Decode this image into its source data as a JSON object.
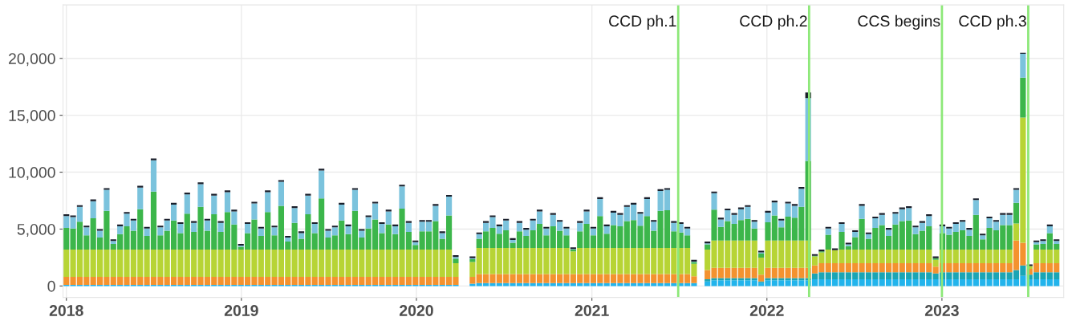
{
  "chart_data": {
    "type": "bar",
    "stacked": true,
    "x": [
      "2018-01-01",
      "2018-01-15",
      "2018-01-29",
      "2018-02-12",
      "2018-02-26",
      "2018-03-12",
      "2018-03-26",
      "2018-04-09",
      "2018-04-23",
      "2018-05-07",
      "2018-05-21",
      "2018-06-04",
      "2018-06-18",
      "2018-07-02",
      "2018-07-16",
      "2018-07-30",
      "2018-08-13",
      "2018-08-27",
      "2018-09-10",
      "2018-09-24",
      "2018-10-08",
      "2018-10-22",
      "2018-11-05",
      "2018-11-19",
      "2018-12-03",
      "2018-12-17",
      "2018-12-31",
      "2019-01-14",
      "2019-01-28",
      "2019-02-11",
      "2019-02-25",
      "2019-03-11",
      "2019-03-25",
      "2019-04-08",
      "2019-04-22",
      "2019-05-06",
      "2019-05-20",
      "2019-06-03",
      "2019-06-17",
      "2019-07-01",
      "2019-07-15",
      "2019-07-29",
      "2019-08-12",
      "2019-08-26",
      "2019-09-09",
      "2019-09-23",
      "2019-10-07",
      "2019-10-21",
      "2019-11-04",
      "2019-11-18",
      "2019-12-02",
      "2019-12-16",
      "2019-12-30",
      "2020-01-13",
      "2020-01-27",
      "2020-02-10",
      "2020-02-24",
      "2020-03-09",
      "2020-03-23",
      "2020-04-27",
      "2020-05-11",
      "2020-05-25",
      "2020-06-08",
      "2020-06-22",
      "2020-07-06",
      "2020-07-20",
      "2020-08-03",
      "2020-08-17",
      "2020-08-31",
      "2020-09-14",
      "2020-09-28",
      "2020-10-12",
      "2020-10-26",
      "2020-11-09",
      "2020-11-23",
      "2020-12-07",
      "2020-12-21",
      "2021-01-04",
      "2021-01-18",
      "2021-02-01",
      "2021-02-15",
      "2021-03-01",
      "2021-03-15",
      "2021-03-29",
      "2021-04-12",
      "2021-04-26",
      "2021-05-10",
      "2021-05-24",
      "2021-06-07",
      "2021-06-21",
      "2021-07-05",
      "2021-07-19",
      "2021-08-02",
      "2021-08-30",
      "2021-09-13",
      "2021-09-27",
      "2021-10-11",
      "2021-10-25",
      "2021-11-08",
      "2021-11-22",
      "2021-12-06",
      "2021-12-20",
      "2022-01-03",
      "2022-01-17",
      "2022-01-31",
      "2022-02-14",
      "2022-02-28",
      "2022-03-14",
      "2022-03-28",
      "2022-04-11",
      "2022-04-25",
      "2022-05-09",
      "2022-05-23",
      "2022-06-06",
      "2022-06-20",
      "2022-07-04",
      "2022-07-18",
      "2022-08-01",
      "2022-08-15",
      "2022-08-29",
      "2022-09-12",
      "2022-09-26",
      "2022-10-10",
      "2022-10-24",
      "2022-11-07",
      "2022-11-21",
      "2022-12-05",
      "2022-12-19",
      "2023-01-02",
      "2023-01-16",
      "2023-01-30",
      "2023-02-13",
      "2023-02-27",
      "2023-03-13",
      "2023-03-27",
      "2023-04-10",
      "2023-04-24",
      "2023-05-08",
      "2023-05-22",
      "2023-06-05",
      "2023-06-19",
      "2023-07-03",
      "2023-07-17",
      "2023-07-31",
      "2023-08-14",
      "2023-08-28"
    ],
    "series": [
      {
        "color": "#22b4ec",
        "values": [
          100,
          100,
          100,
          100,
          100,
          100,
          100,
          100,
          100,
          100,
          100,
          100,
          100,
          100,
          100,
          100,
          100,
          100,
          100,
          100,
          100,
          100,
          100,
          100,
          100,
          100,
          100,
          100,
          100,
          100,
          100,
          100,
          100,
          100,
          100,
          100,
          100,
          100,
          100,
          100,
          100,
          100,
          100,
          100,
          100,
          100,
          100,
          100,
          100,
          100,
          100,
          100,
          100,
          100,
          100,
          100,
          100,
          100,
          100,
          200,
          250,
          250,
          250,
          250,
          250,
          250,
          250,
          250,
          250,
          250,
          250,
          250,
          250,
          250,
          250,
          250,
          250,
          250,
          250,
          250,
          250,
          250,
          250,
          250,
          250,
          250,
          250,
          250,
          250,
          250,
          250,
          250,
          250,
          400,
          500,
          500,
          500,
          500,
          500,
          500,
          500,
          300,
          500,
          500,
          500,
          500,
          500,
          500,
          500,
          600,
          600,
          600,
          600,
          600,
          600,
          600,
          600,
          600,
          600,
          600,
          600,
          600,
          600,
          600,
          600,
          600,
          600,
          600,
          600,
          600,
          600,
          600,
          600,
          600,
          600,
          600,
          600,
          600,
          600,
          600,
          900,
          600,
          600,
          600,
          600,
          600
        ]
      },
      {
        "color": "#1aa5b5",
        "values": [
          0,
          0,
          0,
          0,
          0,
          0,
          0,
          0,
          0,
          0,
          0,
          0,
          0,
          0,
          0,
          0,
          0,
          0,
          0,
          0,
          0,
          0,
          0,
          0,
          0,
          0,
          0,
          0,
          0,
          0,
          0,
          0,
          0,
          0,
          0,
          0,
          0,
          0,
          0,
          0,
          0,
          0,
          0,
          0,
          0,
          0,
          0,
          0,
          0,
          0,
          0,
          0,
          0,
          0,
          0,
          0,
          0,
          0,
          0,
          0,
          0,
          0,
          0,
          0,
          0,
          0,
          0,
          0,
          0,
          0,
          0,
          0,
          0,
          0,
          0,
          0,
          0,
          0,
          0,
          0,
          0,
          0,
          0,
          0,
          0,
          0,
          0,
          0,
          0,
          0,
          0,
          0,
          0,
          200,
          200,
          200,
          200,
          200,
          200,
          200,
          200,
          100,
          200,
          200,
          200,
          200,
          200,
          200,
          200,
          500,
          600,
          600,
          600,
          600,
          600,
          600,
          600,
          600,
          600,
          600,
          600,
          600,
          600,
          600,
          600,
          600,
          600,
          500,
          600,
          600,
          600,
          600,
          600,
          600,
          600,
          600,
          600,
          600,
          600,
          800,
          900,
          400,
          600,
          600,
          600,
          600
        ]
      },
      {
        "color": "#f4922f",
        "values": [
          700,
          700,
          700,
          700,
          700,
          700,
          700,
          700,
          700,
          700,
          700,
          700,
          700,
          700,
          700,
          700,
          700,
          700,
          700,
          700,
          700,
          700,
          700,
          700,
          700,
          700,
          700,
          700,
          700,
          700,
          700,
          700,
          700,
          700,
          700,
          700,
          700,
          700,
          700,
          700,
          700,
          700,
          700,
          700,
          700,
          700,
          700,
          700,
          700,
          700,
          700,
          700,
          700,
          700,
          700,
          700,
          700,
          700,
          700,
          600,
          800,
          800,
          800,
          800,
          800,
          800,
          800,
          800,
          800,
          800,
          800,
          800,
          800,
          800,
          800,
          800,
          800,
          800,
          800,
          800,
          800,
          800,
          800,
          800,
          800,
          800,
          800,
          800,
          800,
          800,
          800,
          800,
          600,
          800,
          900,
          900,
          900,
          900,
          900,
          900,
          900,
          600,
          900,
          900,
          900,
          900,
          900,
          900,
          900,
          700,
          800,
          800,
          800,
          800,
          800,
          800,
          800,
          800,
          800,
          800,
          800,
          800,
          800,
          800,
          800,
          800,
          800,
          600,
          800,
          800,
          800,
          800,
          800,
          800,
          800,
          800,
          800,
          800,
          800,
          2600,
          2000,
          500,
          800,
          800,
          800,
          800
        ]
      },
      {
        "color": "#b7d435",
        "values": [
          2400,
          2400,
          2400,
          2400,
          2400,
          2400,
          2400,
          2400,
          2400,
          2400,
          2400,
          2400,
          2400,
          2400,
          2400,
          2400,
          2400,
          2400,
          2400,
          2400,
          2400,
          2400,
          2400,
          2400,
          2400,
          2400,
          2400,
          2400,
          2400,
          2400,
          2400,
          2400,
          2400,
          2400,
          2400,
          2400,
          2400,
          2400,
          2400,
          2400,
          2400,
          2400,
          2400,
          2400,
          2400,
          2400,
          2400,
          2400,
          2400,
          2400,
          2400,
          2400,
          2400,
          2400,
          2400,
          2400,
          2400,
          2400,
          1200,
          1300,
          2300,
          2300,
          2300,
          2300,
          2300,
          2300,
          2300,
          2300,
          2300,
          2300,
          2300,
          2300,
          2300,
          2300,
          2000,
          2300,
          2300,
          2300,
          2300,
          2300,
          2300,
          2300,
          2300,
          2300,
          2300,
          2300,
          2300,
          2300,
          2300,
          2300,
          2300,
          2300,
          1100,
          1800,
          2400,
          2400,
          2400,
          2400,
          2400,
          2400,
          2400,
          1500,
          2400,
          2400,
          2400,
          2400,
          2400,
          2400,
          2400,
          800,
          950,
          1200,
          1150,
          1200,
          1200,
          1200,
          1200,
          1200,
          1200,
          1200,
          1200,
          1200,
          1200,
          1200,
          1200,
          1200,
          1200,
          600,
          1200,
          1200,
          1200,
          1200,
          1200,
          1200,
          1200,
          1200,
          1200,
          1200,
          1200,
          1500,
          11000,
          250,
          1200,
          1200,
          1200,
          1200
        ]
      },
      {
        "color": "#3cb64b",
        "values": [
          1900,
          1850,
          2450,
          1250,
          2750,
          1050,
          3400,
          500,
          1350,
          2050,
          1650,
          3550,
          1200,
          5100,
          1250,
          1650,
          2550,
          1450,
          3150,
          1550,
          3750,
          1650,
          3100,
          1550,
          3300,
          2200,
          250,
          1450,
          2650,
          1200,
          3300,
          1250,
          3850,
          700,
          2350,
          950,
          3100,
          1450,
          4500,
          1050,
          1250,
          2550,
          1350,
          3400,
          1050,
          1850,
          2650,
          1450,
          2200,
          1350,
          3600,
          1550,
          400,
          1600,
          1600,
          2500,
          950,
          3000,
          400,
          250,
          800,
          1450,
          1750,
          1250,
          1550,
          450,
          1450,
          1050,
          1550,
          2100,
          1100,
          1900,
          1500,
          1100,
          150,
          1450,
          2100,
          1100,
          2800,
          1250,
          2000,
          1900,
          2350,
          2450,
          1950,
          2800,
          1500,
          3250,
          3300,
          1450,
          1350,
          1100,
          150,
          450,
          2700,
          1200,
          1700,
          1450,
          1800,
          1900,
          1050,
          350,
          1600,
          2200,
          1150,
          2100,
          2000,
          2950,
          7000,
          50,
          100,
          1300,
          0,
          1550,
          300,
          1100,
          2700,
          950,
          1900,
          2150,
          1200,
          2200,
          2500,
          2550,
          1350,
          1650,
          2050,
          150,
          1450,
          1300,
          1550,
          1700,
          1200,
          3050,
          900,
          1900,
          1700,
          2150,
          2150,
          1800,
          3500,
          0,
          450,
          500,
          1450,
          500
        ]
      },
      {
        "color": "#7bc3dd",
        "values": [
          1050,
          1000,
          1300,
          700,
          1500,
          600,
          1850,
          250,
          700,
          1100,
          900,
          1900,
          650,
          2750,
          700,
          900,
          1400,
          800,
          1700,
          800,
          2000,
          900,
          1650,
          800,
          1750,
          1150,
          100,
          800,
          1400,
          650,
          1750,
          700,
          2100,
          350,
          1300,
          500,
          1650,
          800,
          2450,
          600,
          700,
          1400,
          700,
          1850,
          600,
          1000,
          1400,
          800,
          1150,
          700,
          1950,
          800,
          250,
          850,
          850,
          1350,
          500,
          1650,
          150,
          100,
          400,
          750,
          950,
          650,
          850,
          250,
          750,
          550,
          850,
          1100,
          600,
          1000,
          800,
          600,
          50,
          750,
          1100,
          600,
          1500,
          650,
          1100,
          1000,
          1250,
          1350,
          1050,
          1500,
          800,
          1750,
          1800,
          750,
          750,
          600,
          50,
          100,
          1450,
          650,
          950,
          800,
          950,
          1050,
          600,
          100,
          850,
          1150,
          600,
          1150,
          1050,
          1600,
          5500,
          0,
          0,
          550,
          0,
          700,
          150,
          450,
          1150,
          400,
          850,
          900,
          550,
          950,
          1050,
          1100,
          600,
          700,
          900,
          0,
          600,
          550,
          700,
          750,
          550,
          1300,
          350,
          850,
          750,
          900,
          900,
          1150,
          2100,
          0,
          200,
          250,
          600,
          250
        ]
      },
      {
        "color": "#1a1f2b",
        "values": [
          150,
          150,
          150,
          150,
          150,
          150,
          150,
          150,
          150,
          150,
          150,
          150,
          150,
          150,
          150,
          150,
          150,
          150,
          150,
          150,
          150,
          150,
          150,
          150,
          150,
          150,
          150,
          150,
          150,
          150,
          150,
          150,
          150,
          150,
          150,
          150,
          150,
          150,
          150,
          150,
          150,
          150,
          150,
          150,
          150,
          150,
          150,
          150,
          150,
          150,
          150,
          150,
          150,
          150,
          150,
          150,
          150,
          150,
          150,
          150,
          150,
          150,
          150,
          150,
          150,
          150,
          150,
          150,
          150,
          150,
          150,
          150,
          150,
          150,
          150,
          150,
          150,
          150,
          150,
          150,
          150,
          150,
          150,
          150,
          150,
          150,
          150,
          150,
          150,
          150,
          150,
          150,
          150,
          150,
          150,
          150,
          150,
          150,
          150,
          150,
          150,
          150,
          150,
          150,
          150,
          150,
          150,
          150,
          500,
          150,
          150,
          150,
          150,
          150,
          150,
          150,
          150,
          150,
          150,
          150,
          150,
          150,
          150,
          150,
          150,
          150,
          150,
          150,
          150,
          150,
          150,
          150,
          150,
          150,
          150,
          150,
          150,
          150,
          150,
          150,
          100,
          150,
          150,
          150,
          150,
          150
        ]
      }
    ],
    "xlim": [
      "2017-12-25",
      "2023-09-12"
    ],
    "xticks": [
      {
        "value": "2018",
        "label": "2018"
      },
      {
        "value": "2019",
        "label": "2019"
      },
      {
        "value": "2020",
        "label": "2020"
      },
      {
        "value": "2021",
        "label": "2021"
      },
      {
        "value": "2022",
        "label": "2022"
      },
      {
        "value": "2023",
        "label": "2023"
      }
    ],
    "ylim": [
      -1000,
      24700
    ],
    "yticks": [
      0,
      {
        "value": 5000,
        "label": "5,000"
      },
      {
        "value": 10000,
        "label": "10,000"
      },
      {
        "value": 15000,
        "label": "15,000"
      },
      {
        "value": 20000,
        "label": "20,000"
      }
    ],
    "ref_lines": [
      {
        "axis": "x",
        "value": "2021-06-30",
        "label": "CCD ph.1",
        "color": "#8de879"
      },
      {
        "axis": "x",
        "value": "2022-03-30",
        "label": "CCD ph.2",
        "color": "#8de879"
      },
      {
        "axis": "x",
        "value": "2023-01-01",
        "label": "CCS begins",
        "color": "#8de879"
      },
      {
        "axis": "x",
        "value": "2023-06-30",
        "label": "CCD ph.3",
        "color": "#8de879"
      }
    ],
    "grid": true
  }
}
